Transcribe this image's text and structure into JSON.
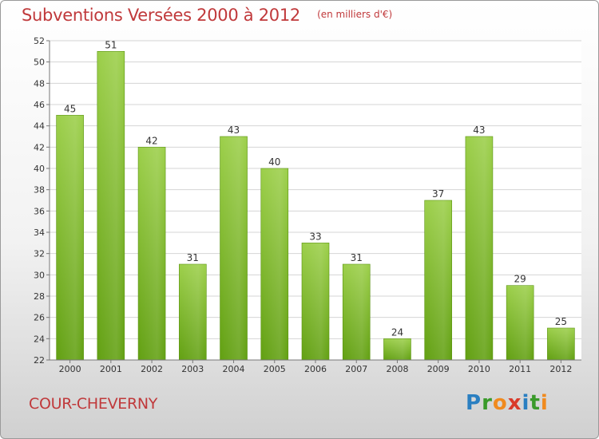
{
  "chart_data": {
    "type": "bar",
    "title": "Subventions Versées 2000 à 2012",
    "unit_note": "(en milliers d'€)",
    "categories": [
      "2000",
      "2001",
      "2002",
      "2003",
      "2004",
      "2005",
      "2006",
      "2007",
      "2008",
      "2009",
      "2010",
      "2011",
      "2012"
    ],
    "values": [
      45,
      51,
      42,
      31,
      43,
      40,
      33,
      31,
      24,
      37,
      43,
      29,
      25
    ],
    "ylim": [
      22,
      52
    ],
    "y_ticks": [
      22,
      24,
      26,
      28,
      30,
      32,
      34,
      36,
      38,
      40,
      42,
      44,
      46,
      48,
      50,
      52
    ],
    "xlabel": "",
    "ylabel": "",
    "grid": "horizontal",
    "bar_color": "#7dbb2e",
    "title_color": "#c0393b"
  },
  "footer": {
    "commune": "COUR-CHEVERNY",
    "logo_letters": [
      {
        "ch": "P",
        "color": "#2a7fc1"
      },
      {
        "ch": "r",
        "color": "#3a9a2a"
      },
      {
        "ch": "o",
        "color": "#f08a1e"
      },
      {
        "ch": "x",
        "color": "#d93a2a"
      },
      {
        "ch": "i",
        "color": "#2a7fc1"
      },
      {
        "ch": "t",
        "color": "#3a9a2a"
      },
      {
        "ch": "i",
        "color": "#f08a1e"
      }
    ]
  }
}
